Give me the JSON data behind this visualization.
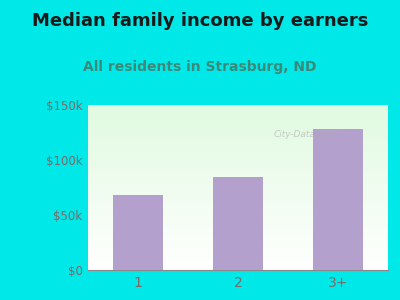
{
  "title": "Median family income by earners",
  "subtitle": "All residents in Strasburg, ND",
  "categories": [
    "1",
    "2",
    "3+"
  ],
  "values": [
    68000,
    85000,
    128000
  ],
  "bar_color": "#b3a0cc",
  "outer_bg": "#00e8e8",
  "title_color": "#1a1a1a",
  "subtitle_color": "#3a8a7a",
  "ytick_color": "#7a6a6a",
  "xtick_color": "#7a6a6a",
  "ytick_labels": [
    "$0",
    "$50k",
    "$100k",
    "$150k"
  ],
  "ytick_values": [
    0,
    50000,
    100000,
    150000
  ],
  "ylim": [
    0,
    150000
  ],
  "title_fontsize": 13,
  "subtitle_fontsize": 10,
  "watermark": "City-Data.com"
}
